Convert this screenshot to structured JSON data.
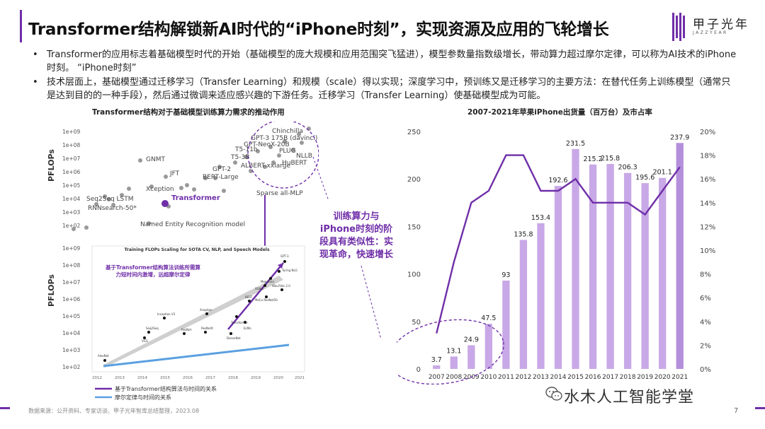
{
  "title": "Transformer结构解锁新AI时代的“iPhone时刻”，实现资源及应用的飞轮增长",
  "logo": {
    "name": "甲子光年",
    "sub": "JAZZYEAR"
  },
  "bullets": [
    "Transformer的应用标志着基础模型时代的开始（基础模型的庞大规模和应用范围突飞猛进），模型参数量指数级增长，带动算力超过摩尔定律，可以称为AI技术的iPhone时刻。 “iPhone时刻”",
    "技术层面上，基础模型通过迁移学习（Transfer Learning）和规模（scale）得以实现；深度学习中，预训练又是迁移学习的主要方法：在替代任务上训练模型（通常只是达到目的的一种手段），然后通过微调来适应感兴趣的下游任务。迁移学习（Transfer Learning）使基础模型成为可能。"
  ],
  "left_caption": "Transformer结构对于基础模型训练算力需求的推动作用",
  "left_top": {
    "ylabel": "PFLOPs",
    "yticks": [
      "1e+09",
      "1e+08",
      "1e+07",
      "1e+06",
      "1e+05",
      "1e+04",
      "1e+03",
      "1e+02"
    ],
    "labels": [
      "Chinchilla",
      "GPT-3 175B (davinci)",
      "GPT-NeoX-20B",
      "PLUG",
      "T5-11b",
      "NLLB",
      "T5-3B",
      "HuBERT",
      "GPT-2",
      "ALBERT-xxlarge",
      "GNMT",
      "BERT-Large",
      "JFT",
      "Xception",
      "Sparse all-MLP",
      "Seq2Seq LSTM",
      "RNNsearch-50*",
      "Named Entity Recognition model"
    ],
    "transformer_label": "Transformer"
  },
  "left_bottom": {
    "ylabel": "PFLOPs",
    "inner_title": "Training FLOPs Scaling for SOTA CV, NLP, and Speech Models",
    "yticks": [
      "1e+09",
      "1e+08",
      "1e+07",
      "1e+06",
      "1e+05",
      "1e+04",
      "1e+03",
      "1e+02"
    ],
    "xticks": [
      "2012",
      "2013",
      "2014",
      "2015",
      "2016",
      "2017",
      "2018",
      "2019",
      "2020",
      "2021"
    ],
    "annotation": "基于Transformer结构算法训练所需算力短时间内激增，远超摩尔定律",
    "points": [
      "GPT-3",
      "Turing NLG",
      "Megatron",
      "XLNet",
      "Wav2Vec 2.0",
      "MoCo ResNet50",
      "BERT",
      "Transformer",
      "ELMo",
      "Xception",
      "Inception V3",
      "Seq2Seq",
      "ResNet",
      "ResNeXt",
      "DenseNet",
      "VGG",
      "AlexNet"
    ],
    "legend": [
      "基于Transformer结构算法与时间的关系",
      "摩尔定律与时间的关系"
    ]
  },
  "callout": "训练算力与iPhone时刻的阶段具有类似性：实现革命，快速增长",
  "chart_data": {
    "type": "bar",
    "title": "2007-2021年苹果iPhone出货量（百万台）及市占率",
    "categories": [
      "2007",
      "2008",
      "2009",
      "2010",
      "2011",
      "2012",
      "2013",
      "2014",
      "2015",
      "2016",
      "2017",
      "2018",
      "2019",
      "2020",
      "2021"
    ],
    "series": [
      {
        "values": [
          3.7,
          13.1,
          24.9,
          47.5,
          93,
          135.8,
          153.4,
          192.6,
          231.5,
          215.2,
          215.8,
          206.3,
          195.6,
          201.1,
          237.9
        ]
      },
      {
        "values": [
          3,
          9,
          14,
          15,
          18,
          18,
          15,
          15,
          16,
          14,
          14,
          14,
          13,
          15,
          17
        ],
        "type": "line",
        "axis": "right"
      }
    ],
    "ylim": [
      0,
      250
    ],
    "y_ticks": [
      0,
      50,
      100,
      150,
      200,
      250
    ],
    "y2lim": [
      0,
      20
    ],
    "y2_ticks": [
      "0%",
      "2%",
      "4%",
      "6%",
      "8%",
      "10%",
      "12%",
      "14%",
      "16%",
      "18%",
      "20%"
    ],
    "colors": {
      "bar": "#c8a8e6",
      "line": "#6f2ea8"
    },
    "grid": false
  },
  "source": "数据来源：公开资料、专家访谈、甲子光年智库总结整理，2023.08",
  "watermark": "水木人工智能学堂",
  "page": "7",
  "colors": {
    "accent": "#6f2ea8",
    "moore": "#5aa0e0"
  }
}
